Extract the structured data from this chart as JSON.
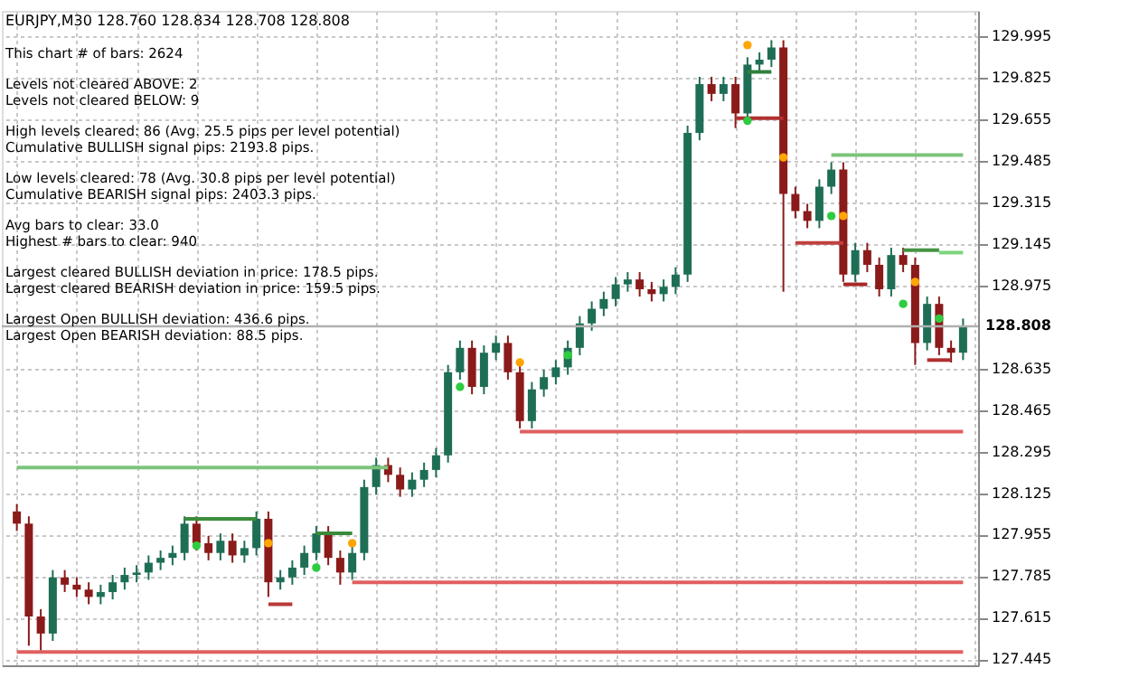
{
  "chart_data": {
    "type": "candlestick",
    "title": "EURJPY,M30  128.760 128.834 128.708 128.808",
    "annotations": [
      "This chart # of bars: 2624",
      "Levels not cleared ABOVE: 2",
      "Levels not cleared BELOW: 9",
      "High levels cleared: 86   (Avg. 25.5 pips per level potential)",
      "Cumulative BULLISH signal pips: 2193.8 pips.",
      "Low levels cleared: 78   (Avg. 30.8 pips per level potential)",
      "Cumulative BEARISH signal pips: 2403.3 pips.",
      "Avg bars to clear: 33.0",
      "Highest # bars to clear: 940",
      "Largest cleared BULLISH deviation in price: 178.5 pips.",
      "Largest cleared BEARISH deviation in price: 159.5 pips.",
      "Largest Open BULLISH deviation: 436.6 pips.",
      "Largest Open BEARISH deviation: 88.5 pips."
    ],
    "categories": [
      null,
      null,
      null,
      null,
      null,
      null,
      null,
      null,
      null,
      null,
      null,
      null,
      null,
      null,
      null,
      null,
      null,
      null,
      null,
      null,
      null,
      null,
      null,
      null,
      null,
      null,
      null,
      null,
      null,
      null,
      null,
      null,
      null,
      null,
      null,
      null,
      null,
      null,
      null,
      null,
      null,
      null,
      null,
      null,
      null,
      null,
      null,
      null,
      null,
      null,
      null,
      null,
      null,
      null,
      null,
      null,
      null,
      null,
      null,
      null,
      null,
      null,
      null,
      null,
      null,
      null,
      null,
      null,
      null,
      null,
      null,
      null,
      null,
      null,
      null,
      null,
      null,
      null,
      null,
      null
    ],
    "ohlc": [
      [
        128.05,
        128.08,
        127.97,
        128.0
      ],
      [
        128.0,
        128.03,
        127.5,
        127.62
      ],
      [
        127.62,
        127.65,
        127.48,
        127.55
      ],
      [
        127.55,
        127.81,
        127.52,
        127.78
      ],
      [
        127.78,
        127.81,
        127.72,
        127.75
      ],
      [
        127.75,
        127.78,
        127.7,
        127.73
      ],
      [
        127.73,
        127.76,
        127.67,
        127.7
      ],
      [
        127.7,
        127.75,
        127.67,
        127.72
      ],
      [
        127.72,
        127.79,
        127.69,
        127.76
      ],
      [
        127.76,
        127.82,
        127.73,
        127.79
      ],
      [
        127.79,
        127.83,
        127.76,
        127.8
      ],
      [
        127.8,
        127.87,
        127.77,
        127.84
      ],
      [
        127.84,
        127.89,
        127.81,
        127.86
      ],
      [
        127.86,
        127.91,
        127.83,
        127.88
      ],
      [
        127.88,
        128.03,
        127.85,
        128.0
      ],
      [
        128.0,
        128.03,
        127.89,
        127.92
      ],
      [
        127.92,
        127.95,
        127.85,
        127.88
      ],
      [
        127.88,
        127.96,
        127.85,
        127.93
      ],
      [
        127.93,
        127.96,
        127.84,
        127.87
      ],
      [
        127.87,
        127.93,
        127.84,
        127.9
      ],
      [
        127.9,
        128.05,
        127.87,
        128.02
      ],
      [
        128.02,
        128.05,
        127.7,
        127.76
      ],
      [
        127.76,
        127.81,
        127.73,
        127.78
      ],
      [
        127.78,
        127.85,
        127.75,
        127.82
      ],
      [
        127.82,
        127.91,
        127.79,
        127.88
      ],
      [
        127.88,
        127.99,
        127.85,
        127.96
      ],
      [
        127.96,
        127.99,
        127.83,
        127.86
      ],
      [
        127.86,
        127.89,
        127.75,
        127.8
      ],
      [
        127.8,
        127.91,
        127.77,
        127.88
      ],
      [
        127.88,
        128.18,
        127.85,
        128.15
      ],
      [
        128.15,
        128.27,
        128.12,
        128.24
      ],
      [
        128.24,
        128.27,
        128.17,
        128.2
      ],
      [
        128.2,
        128.23,
        128.11,
        128.14
      ],
      [
        128.14,
        128.21,
        128.11,
        128.18
      ],
      [
        128.18,
        128.25,
        128.15,
        128.22
      ],
      [
        128.22,
        128.31,
        128.19,
        128.28
      ],
      [
        128.28,
        128.65,
        128.25,
        128.62
      ],
      [
        128.62,
        128.75,
        128.59,
        128.72
      ],
      [
        128.72,
        128.75,
        128.53,
        128.56
      ],
      [
        128.56,
        128.73,
        128.53,
        128.7
      ],
      [
        128.7,
        128.77,
        128.67,
        128.74
      ],
      [
        128.74,
        128.77,
        128.59,
        128.62
      ],
      [
        128.62,
        128.65,
        128.39,
        128.42
      ],
      [
        128.42,
        128.58,
        128.39,
        128.55
      ],
      [
        128.55,
        128.63,
        128.52,
        128.6
      ],
      [
        128.6,
        128.67,
        128.57,
        128.64
      ],
      [
        128.64,
        128.75,
        128.61,
        128.72
      ],
      [
        128.72,
        128.85,
        128.69,
        128.82
      ],
      [
        128.82,
        128.91,
        128.79,
        128.88
      ],
      [
        128.88,
        128.95,
        128.85,
        128.92
      ],
      [
        128.92,
        129.01,
        128.89,
        128.98
      ],
      [
        128.98,
        129.03,
        128.95,
        129.0
      ],
      [
        129.0,
        129.03,
        128.93,
        128.96
      ],
      [
        128.96,
        128.99,
        128.91,
        128.94
      ],
      [
        128.94,
        129.0,
        128.91,
        128.97
      ],
      [
        128.97,
        129.05,
        128.94,
        129.02
      ],
      [
        129.02,
        129.63,
        128.99,
        129.6
      ],
      [
        129.6,
        129.83,
        129.57,
        129.8
      ],
      [
        129.8,
        129.83,
        129.73,
        129.76
      ],
      [
        129.76,
        129.83,
        129.73,
        129.8
      ],
      [
        129.8,
        129.83,
        129.62,
        129.68
      ],
      [
        129.68,
        129.91,
        129.65,
        129.88
      ],
      [
        129.88,
        129.93,
        129.85,
        129.9
      ],
      [
        129.9,
        129.98,
        129.87,
        129.95
      ],
      [
        129.95,
        129.98,
        128.95,
        129.35
      ],
      [
        129.35,
        129.38,
        129.25,
        129.28
      ],
      [
        129.28,
        129.31,
        129.21,
        129.24
      ],
      [
        129.24,
        129.41,
        129.21,
        129.38
      ],
      [
        129.38,
        129.48,
        129.35,
        129.45
      ],
      [
        129.45,
        129.48,
        128.99,
        129.02
      ],
      [
        129.02,
        129.15,
        128.99,
        129.12
      ],
      [
        129.12,
        129.15,
        129.03,
        129.06
      ],
      [
        129.06,
        129.09,
        128.93,
        128.96
      ],
      [
        128.96,
        129.13,
        128.93,
        129.1
      ],
      [
        129.1,
        129.13,
        129.03,
        129.06
      ],
      [
        129.06,
        129.09,
        128.65,
        128.74
      ],
      [
        128.74,
        128.93,
        128.71,
        128.9
      ],
      [
        128.9,
        128.93,
        128.69,
        128.72
      ],
      [
        128.72,
        128.75,
        128.66,
        128.7
      ],
      [
        128.7,
        128.84,
        128.67,
        128.81
      ]
    ],
    "colors": [
      "#8b1a1a",
      "#8b1a1a",
      "#8b1a1a",
      "#1e6e56",
      "#8b1a1a",
      "#8b1a1a",
      "#8b1a1a",
      "#1e6e56",
      "#1e6e56",
      "#1e6e56",
      "#1e6e56",
      "#1e6e56",
      "#1e6e56",
      "#1e6e56",
      "#1e6e56",
      "#8b1a1a",
      "#8b1a1a",
      "#1e6e56",
      "#8b1a1a",
      "#1e6e56",
      "#1e6e56",
      "#8b1a1a",
      "#1e6e56",
      "#1e6e56",
      "#1e6e56",
      "#1e6e56",
      "#8b1a1a",
      "#8b1a1a",
      "#1e6e56",
      "#1e6e56",
      "#1e6e56",
      "#8b1a1a",
      "#8b1a1a",
      "#1e6e56",
      "#1e6e56",
      "#1e6e56",
      "#1e6e56",
      "#1e6e56",
      "#8b1a1a",
      "#1e6e56",
      "#1e6e56",
      "#8b1a1a",
      "#8b1a1a",
      "#1e6e56",
      "#1e6e56",
      "#1e6e56",
      "#1e6e56",
      "#1e6e56",
      "#1e6e56",
      "#1e6e56",
      "#1e6e56",
      "#1e6e56",
      "#8b1a1a",
      "#8b1a1a",
      "#1e6e56",
      "#1e6e56",
      "#1e6e56",
      "#1e6e56",
      "#8b1a1a",
      "#1e6e56",
      "#8b1a1a",
      "#1e6e56",
      "#1e6e56",
      "#1e6e56",
      "#8b1a1a",
      "#8b1a1a",
      "#8b1a1a",
      "#1e6e56",
      "#1e6e56",
      "#8b1a1a",
      "#1e6e56",
      "#8b1a1a",
      "#8b1a1a",
      "#1e6e56",
      "#8b1a1a",
      "#8b1a1a",
      "#1e6e56",
      "#8b1a1a",
      "#8b1a1a",
      "#1e6e56"
    ],
    "series": [
      {
        "type": "line",
        "color": "#e06060",
        "values": [
          127.475,
          127.475,
          127.475,
          127.475,
          127.475,
          127.475,
          127.475,
          127.475,
          127.475,
          127.475,
          127.475,
          127.475,
          127.475,
          127.475,
          127.475,
          127.475,
          127.475,
          127.475,
          127.475,
          127.475,
          127.475,
          127.475,
          127.475,
          127.475,
          127.475,
          127.475,
          127.475,
          127.475,
          127.475,
          127.475,
          127.475,
          127.475,
          127.475,
          127.475,
          127.475,
          127.475,
          127.475,
          127.475,
          127.475,
          127.475,
          127.475,
          127.475,
          127.475,
          127.475,
          127.475,
          127.475,
          127.475,
          127.475,
          127.475,
          127.475,
          127.475,
          127.475,
          127.475,
          127.475,
          127.475,
          127.475,
          127.475,
          127.475,
          127.475,
          127.475,
          127.475,
          127.475,
          127.475,
          127.475,
          127.475,
          127.475,
          127.475,
          127.475,
          127.475,
          127.475,
          127.475,
          127.475,
          127.475,
          127.475,
          127.475,
          127.475,
          127.475,
          127.475,
          127.475,
          127.475
        ]
      },
      {
        "type": "line",
        "color": "#e06060",
        "values": [
          null,
          null,
          null,
          null,
          null,
          null,
          null,
          null,
          null,
          null,
          null,
          null,
          null,
          null,
          null,
          null,
          null,
          null,
          null,
          null,
          null,
          null,
          null,
          null,
          null,
          null,
          null,
          null,
          127.76,
          127.76,
          127.76,
          127.76,
          127.76,
          127.76,
          127.76,
          127.76,
          127.76,
          127.76,
          127.76,
          127.76,
          127.76,
          127.76,
          127.76,
          127.76,
          127.76,
          127.76,
          127.76,
          127.76,
          127.76,
          127.76,
          127.76,
          127.76,
          127.76,
          127.76,
          127.76,
          127.76,
          127.76,
          127.76,
          127.76,
          127.76,
          127.76,
          127.76,
          127.76,
          127.76,
          127.76,
          127.76,
          127.76,
          127.76,
          127.76,
          127.76,
          127.76,
          127.76,
          127.76,
          127.76,
          127.76,
          127.76,
          127.76,
          127.76,
          127.76,
          127.76
        ]
      },
      {
        "type": "line",
        "color": "#e06060",
        "values": [
          null,
          null,
          null,
          null,
          null,
          null,
          null,
          null,
          null,
          null,
          null,
          null,
          null,
          null,
          null,
          null,
          null,
          null,
          null,
          null,
          null,
          null,
          null,
          null,
          null,
          null,
          null,
          null,
          null,
          null,
          null,
          null,
          null,
          null,
          null,
          null,
          null,
          null,
          null,
          null,
          null,
          null,
          128.377,
          128.377,
          128.377,
          128.377,
          128.377,
          128.377,
          128.377,
          128.377,
          128.377,
          128.377,
          128.377,
          128.377,
          128.377,
          128.377,
          128.377,
          128.377,
          128.377,
          128.377,
          128.377,
          128.377,
          128.377,
          128.377,
          128.377,
          128.377,
          128.377,
          128.377,
          128.377,
          128.377,
          128.377,
          128.377,
          128.377,
          128.377,
          128.377,
          128.377,
          128.377,
          128.377,
          128.377,
          128.377
        ]
      },
      {
        "type": "line",
        "color": "#7cc47c",
        "values": [
          128.23,
          128.23,
          128.23,
          128.23,
          128.23,
          128.23,
          128.23,
          128.23,
          128.23,
          128.23,
          128.23,
          128.23,
          128.23,
          128.23,
          128.23,
          128.23,
          128.23,
          128.23,
          128.23,
          128.23,
          128.23,
          128.23,
          128.23,
          128.23,
          128.23,
          128.23,
          128.23,
          128.23,
          128.23,
          128.23,
          128.23,
          128.23,
          null,
          null,
          null,
          null,
          null,
          null,
          null,
          null,
          null,
          null,
          null,
          null,
          null,
          null,
          null,
          null,
          null,
          null,
          null,
          null,
          null,
          null,
          null,
          null,
          null,
          null,
          null,
          null,
          null,
          null,
          null,
          null,
          null,
          null,
          null,
          null,
          129.51,
          129.51,
          129.51,
          129.51,
          129.51,
          129.51,
          129.51,
          129.51,
          129.51,
          129.51,
          129.51,
          129.51
        ]
      },
      {
        "type": "line",
        "color": "#7cd67c",
        "values": [
          null,
          null,
          null,
          null,
          null,
          null,
          null,
          null,
          null,
          null,
          null,
          null,
          null,
          null,
          null,
          null,
          null,
          null,
          null,
          null,
          null,
          null,
          null,
          null,
          null,
          null,
          null,
          null,
          null,
          null,
          null,
          null,
          null,
          null,
          null,
          null,
          null,
          null,
          null,
          null,
          null,
          null,
          null,
          null,
          null,
          null,
          null,
          null,
          null,
          null,
          null,
          null,
          null,
          null,
          null,
          null,
          null,
          null,
          null,
          null,
          null,
          null,
          null,
          null,
          null,
          null,
          null,
          null,
          null,
          null,
          null,
          null,
          null,
          null,
          null,
          null,
          null,
          129.11,
          129.11,
          129.11
        ]
      },
      {
        "type": "line",
        "color": "#3c8c3c",
        "values": [
          null,
          null,
          null,
          null,
          null,
          null,
          null,
          null,
          null,
          null,
          null,
          null,
          null,
          null,
          128.02,
          128.02,
          128.02,
          128.02,
          128.02,
          128.02,
          128.02,
          null,
          null,
          null,
          null,
          null,
          null,
          null,
          null,
          null,
          null,
          null,
          null,
          null,
          null,
          null,
          null,
          null,
          null,
          null,
          null,
          null,
          null,
          null,
          null,
          null,
          null,
          null,
          null,
          null,
          null,
          null,
          null,
          null,
          null,
          null,
          null,
          null,
          null,
          null,
          null,
          null,
          null,
          null,
          null,
          null,
          null,
          null,
          null,
          null,
          null,
          null,
          null,
          null,
          null,
          null,
          null,
          null,
          null,
          null
        ]
      },
      {
        "type": "line",
        "color": "#3a8a3a",
        "values": [
          null,
          null,
          null,
          null,
          null,
          null,
          null,
          null,
          null,
          null,
          null,
          null,
          null,
          null,
          null,
          null,
          null,
          null,
          null,
          null,
          null,
          null,
          null,
          null,
          null,
          127.96,
          127.96,
          127.96,
          127.96,
          null,
          null,
          null,
          null,
          null,
          null,
          null,
          null,
          null,
          null,
          null,
          null,
          null,
          null,
          null,
          null,
          null,
          null,
          null,
          null,
          null,
          null,
          null,
          null,
          null,
          null,
          null,
          null,
          null,
          null,
          null,
          null,
          null,
          null,
          null,
          null,
          null,
          null,
          null,
          null,
          null,
          null,
          null,
          null,
          null,
          null,
          null,
          null,
          null,
          null,
          null
        ]
      },
      {
        "type": "line",
        "color": "#2f7f3f",
        "values": [
          null,
          null,
          null,
          null,
          null,
          null,
          null,
          null,
          null,
          null,
          null,
          null,
          null,
          null,
          null,
          null,
          null,
          null,
          null,
          null,
          null,
          null,
          null,
          null,
          null,
          null,
          null,
          null,
          null,
          null,
          null,
          null,
          null,
          null,
          null,
          null,
          null,
          null,
          null,
          null,
          null,
          null,
          null,
          null,
          null,
          null,
          null,
          null,
          null,
          null,
          null,
          null,
          null,
          null,
          null,
          null,
          null,
          null,
          null,
          null,
          null,
          129.85,
          129.85,
          129.85,
          null,
          null,
          null,
          null,
          null,
          null,
          null,
          null,
          null,
          null,
          null,
          null,
          null,
          null,
          null,
          null
        ]
      },
      {
        "type": "line",
        "color": "#449444",
        "values": [
          null,
          null,
          null,
          null,
          null,
          null,
          null,
          null,
          null,
          null,
          null,
          null,
          null,
          null,
          null,
          null,
          null,
          null,
          null,
          null,
          null,
          null,
          null,
          null,
          null,
          null,
          null,
          null,
          null,
          null,
          null,
          null,
          null,
          null,
          null,
          null,
          null,
          null,
          null,
          null,
          null,
          null,
          null,
          null,
          null,
          null,
          null,
          null,
          null,
          null,
          null,
          null,
          null,
          null,
          null,
          null,
          null,
          null,
          null,
          null,
          null,
          null,
          null,
          null,
          null,
          null,
          null,
          null,
          null,
          null,
          null,
          null,
          null,
          null,
          129.12,
          129.12,
          129.12,
          129.12,
          null,
          null
        ]
      },
      {
        "type": "line",
        "color": "#b83838",
        "values": [
          null,
          null,
          null,
          null,
          null,
          null,
          null,
          null,
          null,
          null,
          null,
          null,
          null,
          null,
          null,
          null,
          null,
          null,
          null,
          null,
          null,
          127.67,
          127.67,
          127.67,
          null,
          null,
          null,
          null,
          null,
          null,
          null,
          null,
          null,
          null,
          null,
          null,
          null,
          null,
          null,
          null,
          null,
          null,
          null,
          null,
          null,
          null,
          null,
          null,
          null,
          null,
          null,
          null,
          null,
          null,
          null,
          null,
          null,
          null,
          null,
          null,
          null,
          null,
          null,
          null,
          null,
          null,
          null,
          null,
          null,
          null,
          null,
          null,
          null,
          null,
          null,
          null,
          null,
          null,
          null,
          null
        ]
      },
      {
        "type": "line",
        "color": "#b03030",
        "values": [
          null,
          null,
          null,
          null,
          null,
          null,
          null,
          null,
          null,
          null,
          null,
          null,
          null,
          null,
          null,
          null,
          null,
          null,
          null,
          null,
          null,
          null,
          null,
          null,
          null,
          null,
          null,
          null,
          null,
          null,
          null,
          null,
          null,
          null,
          null,
          null,
          null,
          null,
          null,
          null,
          null,
          null,
          null,
          null,
          null,
          null,
          null,
          null,
          null,
          null,
          null,
          null,
          null,
          null,
          null,
          null,
          null,
          null,
          null,
          null,
          129.66,
          129.66,
          129.66,
          129.66,
          129.66,
          null,
          null,
          null,
          null,
          null,
          null,
          null,
          null,
          null,
          null,
          null,
          null,
          null,
          null,
          null
        ]
      },
      {
        "type": "line",
        "color": "#a82828",
        "values": [
          null,
          null,
          null,
          null,
          null,
          null,
          null,
          null,
          null,
          null,
          null,
          null,
          null,
          null,
          null,
          null,
          null,
          null,
          null,
          null,
          null,
          null,
          null,
          null,
          null,
          null,
          null,
          null,
          null,
          null,
          null,
          null,
          null,
          null,
          null,
          null,
          null,
          null,
          null,
          null,
          null,
          null,
          null,
          null,
          null,
          null,
          null,
          null,
          null,
          null,
          null,
          null,
          null,
          null,
          null,
          null,
          null,
          null,
          null,
          null,
          null,
          null,
          null,
          null,
          null,
          null,
          null,
          null,
          null,
          128.98,
          128.98,
          128.98,
          null,
          null,
          null,
          null,
          null,
          null,
          null,
          null
        ]
      },
      {
        "type": "line",
        "color": "#c04040",
        "values": [
          null,
          null,
          null,
          null,
          null,
          null,
          null,
          null,
          null,
          null,
          null,
          null,
          null,
          null,
          null,
          null,
          null,
          null,
          null,
          null,
          null,
          null,
          null,
          null,
          null,
          null,
          null,
          null,
          null,
          null,
          null,
          null,
          null,
          null,
          null,
          null,
          null,
          null,
          null,
          null,
          null,
          null,
          null,
          null,
          null,
          null,
          null,
          null,
          null,
          null,
          null,
          null,
          null,
          null,
          null,
          null,
          null,
          null,
          null,
          null,
          null,
          null,
          null,
          null,
          null,
          129.15,
          129.15,
          129.15,
          129.15,
          129.15,
          null,
          null,
          null,
          null,
          null,
          null,
          null,
          null,
          null,
          null
        ]
      },
      {
        "type": "line",
        "color": "#b03030",
        "values": [
          null,
          null,
          null,
          null,
          null,
          null,
          null,
          null,
          null,
          null,
          null,
          null,
          null,
          null,
          null,
          null,
          null,
          null,
          null,
          null,
          null,
          null,
          null,
          null,
          null,
          null,
          null,
          null,
          null,
          null,
          null,
          null,
          null,
          null,
          null,
          null,
          null,
          null,
          null,
          null,
          null,
          null,
          null,
          null,
          null,
          null,
          null,
          null,
          null,
          null,
          null,
          null,
          null,
          null,
          null,
          null,
          null,
          null,
          null,
          null,
          null,
          null,
          null,
          null,
          null,
          null,
          null,
          null,
          null,
          null,
          null,
          null,
          null,
          null,
          null,
          null,
          128.67,
          128.67,
          128.67,
          null
        ]
      },
      {
        "type": "scatter",
        "color": "#ffa500",
        "values": [
          null,
          null,
          null,
          null,
          null,
          null,
          null,
          null,
          null,
          null,
          null,
          null,
          null,
          null,
          null,
          null,
          null,
          null,
          null,
          null,
          null,
          127.92,
          null,
          null,
          null,
          null,
          null,
          null,
          127.92,
          null,
          null,
          null,
          null,
          null,
          null,
          null,
          null,
          null,
          null,
          null,
          null,
          null,
          128.66,
          null,
          null,
          null,
          null,
          null,
          null,
          null,
          null,
          null,
          null,
          null,
          null,
          null,
          null,
          null,
          null,
          null,
          null,
          129.96,
          null,
          null,
          129.5,
          null,
          null,
          null,
          null,
          129.26,
          null,
          null,
          null,
          null,
          null,
          128.99,
          null,
          null,
          null,
          null
        ]
      },
      {
        "type": "scatter",
        "color": "#2ecc40",
        "values": [
          null,
          null,
          null,
          null,
          null,
          null,
          null,
          null,
          null,
          null,
          null,
          null,
          null,
          null,
          null,
          127.91,
          null,
          null,
          null,
          null,
          null,
          null,
          null,
          null,
          null,
          127.82,
          null,
          null,
          null,
          null,
          null,
          null,
          null,
          null,
          null,
          null,
          null,
          128.56,
          null,
          null,
          null,
          null,
          null,
          null,
          null,
          null,
          128.69,
          null,
          null,
          null,
          null,
          null,
          null,
          null,
          null,
          null,
          null,
          null,
          null,
          null,
          null,
          129.65,
          null,
          null,
          null,
          null,
          null,
          null,
          129.26,
          null,
          null,
          null,
          null,
          null,
          128.9,
          null,
          null,
          128.84,
          null,
          null
        ]
      }
    ],
    "ref_lines": [
      {
        "axis": "y",
        "value": 128.808,
        "label": "128.808",
        "color": "#b0b0b0"
      }
    ],
    "ylim": [
      127.42,
      130.1
    ],
    "yticks": [
      127.445,
      127.615,
      127.785,
      127.955,
      128.125,
      128.295,
      128.465,
      128.635,
      128.975,
      129.145,
      129.315,
      129.485,
      129.655,
      129.825,
      129.995
    ],
    "tick_labels": "y",
    "grid": true
  }
}
